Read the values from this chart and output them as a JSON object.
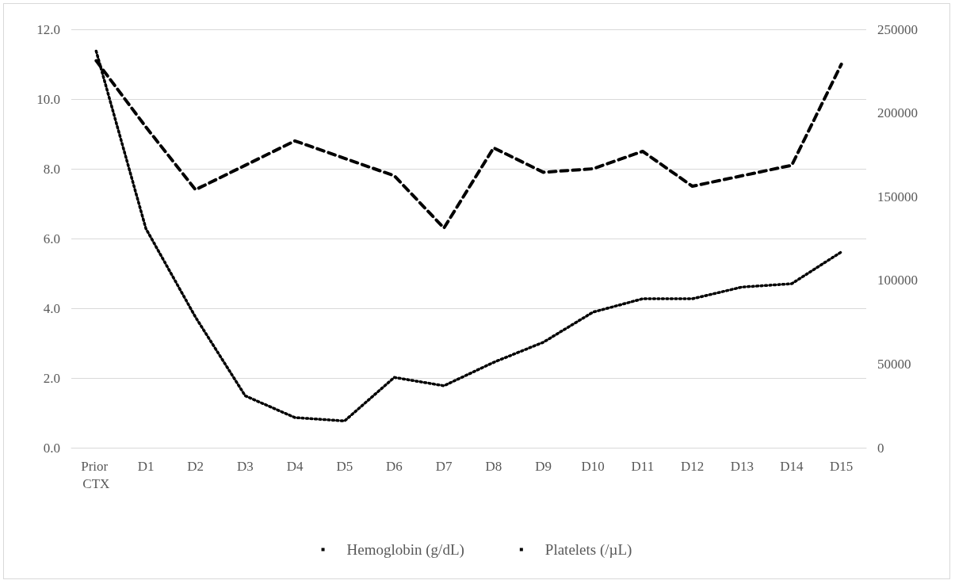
{
  "chart_data": {
    "type": "line",
    "categories": [
      "Prior CTX",
      "D1",
      "D2",
      "D3",
      "D4",
      "D5",
      "D6",
      "D7",
      "D8",
      "D9",
      "D10",
      "D11",
      "D12",
      "D13",
      "D14",
      "D15"
    ],
    "series": [
      {
        "name": "Hemoglobin (g/dL)",
        "color": "#000000",
        "line_style": "dashed",
        "values": [
          11.1,
          9.2,
          7.4,
          8.1,
          8.8,
          8.3,
          7.8,
          6.3,
          8.6,
          7.9,
          8.0,
          8.5,
          7.5,
          7.8,
          8.1,
          11.0
        ]
      },
      {
        "name": "Platelets (/µL)",
        "color": "#000000",
        "line_style": "dotted",
        "axis": "y2",
        "values": [
          237000,
          131000,
          78000,
          31000,
          18000,
          16000,
          42000,
          37000,
          51000,
          63000,
          81000,
          89000,
          89000,
          96000,
          98000,
          117000
        ]
      }
    ],
    "ylim": [
      0,
      12
    ],
    "yticks": [
      {
        "value": 0,
        "label": "0.0"
      },
      {
        "value": 2,
        "label": "2.0"
      },
      {
        "value": 4,
        "label": "4.0"
      },
      {
        "value": 6,
        "label": "6.0"
      },
      {
        "value": 8,
        "label": "8.0"
      },
      {
        "value": 10,
        "label": "10.0"
      },
      {
        "value": 12,
        "label": "12.0"
      }
    ],
    "y2lim": [
      0,
      250000
    ],
    "y2ticks": [
      0,
      50000,
      100000,
      150000,
      200000,
      250000
    ],
    "grid": "y",
    "legend": "bottom",
    "marker": "none"
  }
}
